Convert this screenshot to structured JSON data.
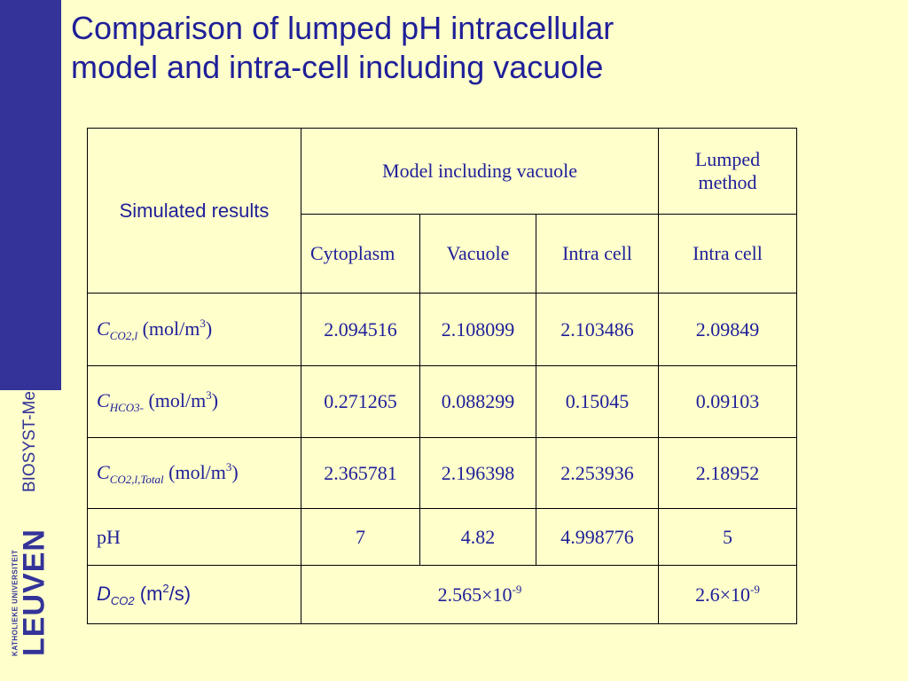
{
  "sidebar": {
    "brand": "BIOSYST-MeBioS",
    "logo_small": "KATHOLIEKE UNIVERSITEIT",
    "logo_big": "LEUVEN",
    "color": "#333399"
  },
  "title": {
    "line1": "Comparison of lumped pH intracellular",
    "line2": "model and intra-cell including vacuole",
    "color": "#1f1f99"
  },
  "table": {
    "corner": "Simulated results",
    "group_vacuole": "Model including vacuole",
    "group_lumped": "Lumped method",
    "columns": [
      "Cytoplasm",
      "Vacuole",
      "Intra cell",
      "Intra cell"
    ],
    "rows": [
      {
        "label": {
          "symbol": "C",
          "sub": "CO2,l",
          "unit_pre": " (mol/m",
          "unit_sup": "3",
          "unit_post": ")"
        },
        "values": [
          "2.094516",
          "2.108099",
          "2.103486",
          "2.09849"
        ]
      },
      {
        "label": {
          "symbol": "C",
          "sub": "HCO3-",
          "unit_pre": " (mol/m",
          "unit_sup": "3",
          "unit_post": ")"
        },
        "values": [
          "0.271265",
          "0.088299",
          "0.15045",
          "0.09103"
        ]
      },
      {
        "label": {
          "symbol": "C",
          "sub": "CO2,l,Total",
          "unit_pre": " (mol/m",
          "unit_sup": "3",
          "unit_post": ")"
        },
        "values": [
          "2.365781",
          "2.196398",
          "2.253936",
          "2.18952"
        ]
      },
      {
        "label": {
          "text": "pH"
        },
        "values": [
          "7",
          "4.82",
          "4.998776",
          "5"
        ]
      }
    ],
    "diffusion": {
      "symbol": "D",
      "sub": "CO2",
      "unit_pre": " (m",
      "unit_sup": "2",
      "unit_post": "/s)",
      "vacuole_base": "2.565×10",
      "vacuole_exp": "-9",
      "lumped_base": "2.6×10",
      "lumped_exp": "-9"
    }
  }
}
